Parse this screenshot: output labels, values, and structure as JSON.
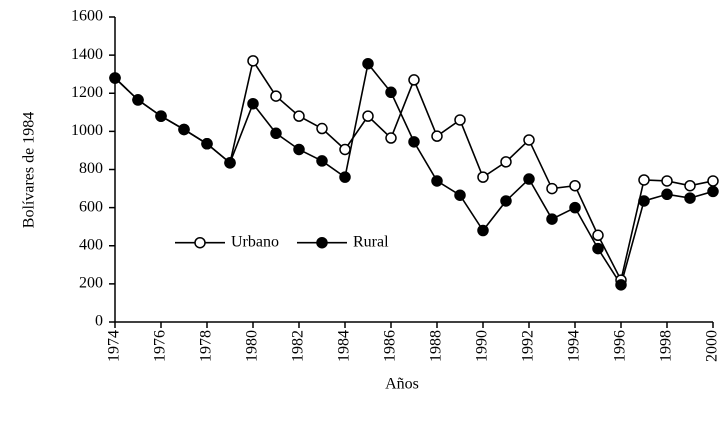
{
  "chart_data": {
    "type": "line",
    "xlabel": "Años",
    "ylabel": "Bolívares de 1984",
    "x": [
      1974,
      1975,
      1976,
      1977,
      1978,
      1979,
      1980,
      1981,
      1982,
      1983,
      1984,
      1985,
      1986,
      1987,
      1988,
      1989,
      1990,
      1991,
      1992,
      1993,
      1994,
      1995,
      1996,
      1997,
      1998,
      1999,
      2000
    ],
    "series": [
      {
        "name": "Urbano",
        "color": "#000000",
        "marker": "open",
        "values": [
          1280,
          1165,
          1080,
          1010,
          935,
          835,
          1370,
          1185,
          1080,
          1015,
          905,
          1080,
          965,
          1270,
          975,
          1060,
          760,
          840,
          955,
          700,
          715,
          455,
          220,
          745,
          740,
          715,
          740
        ]
      },
      {
        "name": "Rural",
        "color": "#000000",
        "marker": "filled",
        "values": [
          1280,
          1165,
          1080,
          1010,
          935,
          835,
          1145,
          990,
          905,
          845,
          760,
          1355,
          1205,
          945,
          740,
          665,
          480,
          635,
          750,
          540,
          600,
          385,
          195,
          635,
          670,
          650,
          685
        ]
      }
    ],
    "xlim": [
      1974,
      2000
    ],
    "xticks": [
      1974,
      1976,
      1978,
      1980,
      1982,
      1984,
      1986,
      1988,
      1990,
      1992,
      1994,
      1996,
      1998,
      2000
    ],
    "ylim": [
      0,
      1600
    ],
    "yticks": [
      0,
      200,
      400,
      600,
      800,
      1000,
      1200,
      1400,
      1600
    ],
    "grid": false,
    "legend": "center left"
  }
}
